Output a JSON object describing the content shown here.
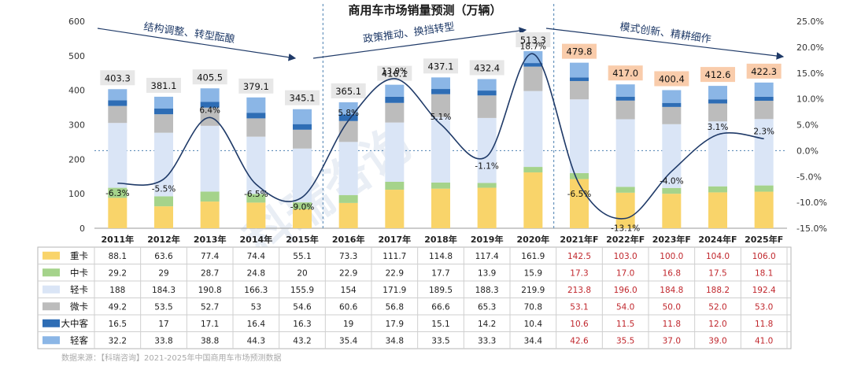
{
  "title": "商用车市场销量预测（万辆）",
  "phases": [
    "结构调整、转型酝酿",
    "政策推动、换挡转型",
    "模式创新、精耕细作"
  ],
  "source": "数据来源：【科瑞咨询】2021-2025年中国商用车市场预测数据",
  "watermark": "科瑞咨询",
  "colors": {
    "heavy": "#f9d46a",
    "medium": "#a5d38b",
    "light": "#dae5f6",
    "mini": "#bcbcbc",
    "bus": "#2e6db5",
    "lightbus": "#8bb6e6",
    "line": "#1f3a68",
    "forecast_text": "#c0272d",
    "forecast_box": "#f9ccab",
    "actual_box": "#e7e7e7"
  },
  "chart_data": {
    "type": "bar",
    "stacked": true,
    "title": "商用车市场销量预测（万辆）",
    "categories": [
      "2011年",
      "2012年",
      "2013年",
      "2014年",
      "2015年",
      "2016年",
      "2017年",
      "2018年",
      "2019年",
      "2020年",
      "2021年F",
      "2022年F",
      "2023年F",
      "2024年F",
      "2025年F"
    ],
    "forecast_start_index": 10,
    "ylim": [
      0,
      600
    ],
    "yticks": [
      "0",
      "100",
      "200",
      "300",
      "400",
      "500",
      "600"
    ],
    "y2lim": [
      -15,
      25
    ],
    "y2ticks": [
      "-15.0%",
      "-10.0%",
      "-5.0%",
      "0.0%",
      "5.0%",
      "10.0%",
      "15.0%",
      "20.0%",
      "25.0%"
    ],
    "series": [
      {
        "name": "重卡",
        "key": "heavy",
        "values": [
          "88.1",
          "63.6",
          "77.4",
          "74.4",
          "55.1",
          "73.3",
          "111.7",
          "114.8",
          "117.4",
          "161.9",
          "142.5",
          "103.0",
          "100.0",
          "104.0",
          "106.0"
        ]
      },
      {
        "name": "中卡",
        "key": "medium",
        "values": [
          "29.2",
          "29",
          "28.7",
          "24.8",
          "20",
          "22.9",
          "22.9",
          "17.7",
          "13.9",
          "15.9",
          "17.3",
          "17.0",
          "16.8",
          "17.5",
          "18.1"
        ]
      },
      {
        "name": "轻卡",
        "key": "light",
        "values": [
          "188",
          "184.3",
          "190.8",
          "166.3",
          "155.9",
          "154",
          "171.9",
          "189.5",
          "188.3",
          "219.9",
          "213.8",
          "196.0",
          "184.8",
          "188.2",
          "192.4"
        ]
      },
      {
        "name": "微卡",
        "key": "mini",
        "values": [
          "49.2",
          "53.5",
          "52.7",
          "53",
          "54.6",
          "60.6",
          "56.8",
          "66.6",
          "65.3",
          "70.8",
          "53.1",
          "54.0",
          "50.0",
          "52.0",
          "53.0"
        ]
      },
      {
        "name": "大中客",
        "key": "bus",
        "values": [
          "16.5",
          "17",
          "17.1",
          "16.4",
          "16.3",
          "19",
          "17.9",
          "15.1",
          "14.2",
          "10.4",
          "10.6",
          "11.5",
          "11.8",
          "12.0",
          "11.8"
        ]
      },
      {
        "name": "轻客",
        "key": "lightbus",
        "values": [
          "32.2",
          "33.8",
          "38.8",
          "44.3",
          "43.2",
          "35.4",
          "34.8",
          "33.5",
          "33.3",
          "34.4",
          "42.6",
          "35.5",
          "37.0",
          "39.0",
          "41.0"
        ]
      }
    ],
    "totals": [
      "403.3",
      "381.1",
      "405.5",
      "379.1",
      "345.1",
      "365.1",
      "416.1",
      "437.1",
      "432.4",
      "513.3",
      "479.8",
      "417.0",
      "400.4",
      "412.6",
      "422.3"
    ],
    "growth_rate": {
      "name": "增长率",
      "values": [
        -6.3,
        -5.5,
        6.4,
        -6.5,
        -9.0,
        5.8,
        13.9,
        5.1,
        -1.1,
        18.7,
        -6.5,
        -13.1,
        -4.0,
        3.1,
        2.3
      ],
      "labels": [
        "-6.3%",
        "-5.5%",
        "6.4%",
        "-6.5%",
        "-9.0%",
        "5.8%",
        "13.9%",
        "5.1%",
        "-1.1%",
        "18.7%",
        "-6.5%",
        "-13.1%",
        "-4.0%",
        "3.1%",
        "2.3%"
      ]
    }
  }
}
